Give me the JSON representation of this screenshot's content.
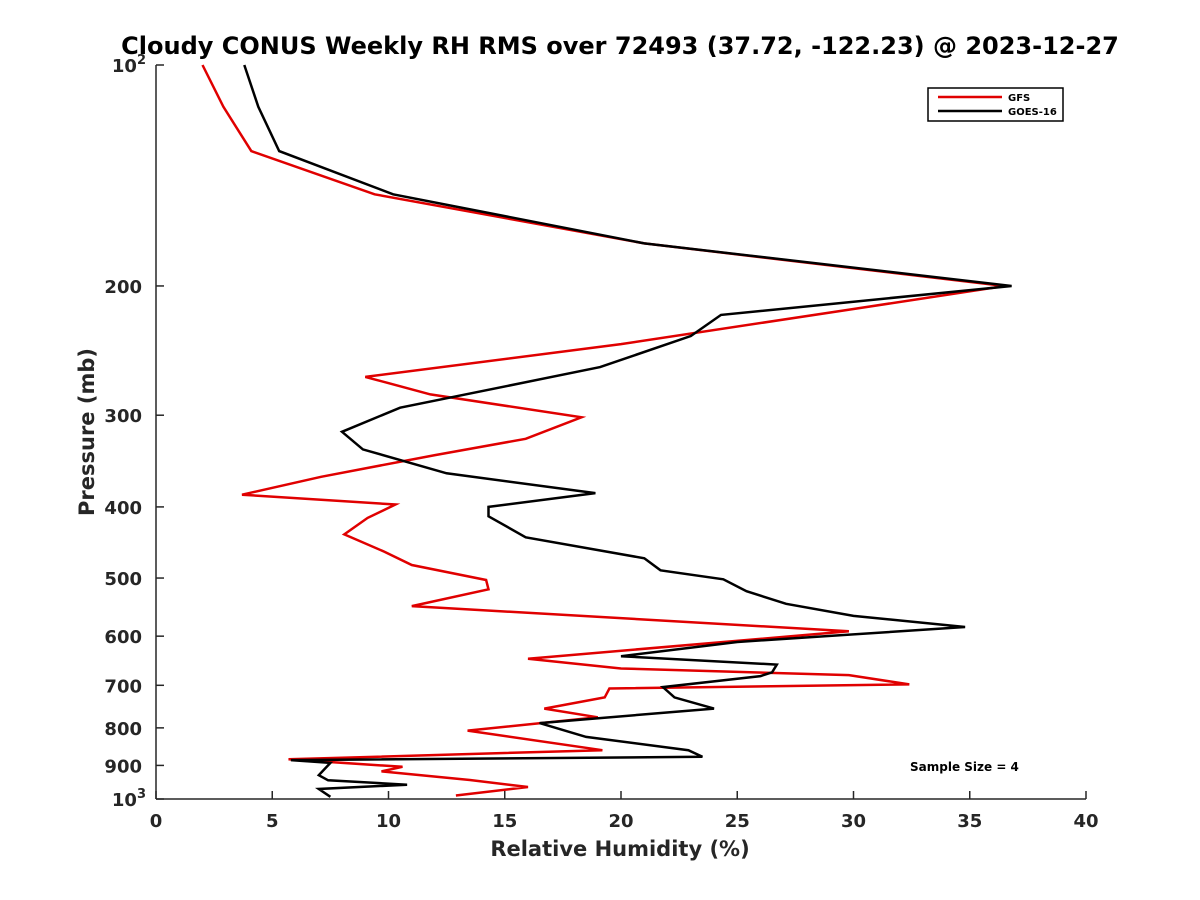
{
  "chart_data": {
    "type": "line",
    "title": "Cloudy CONUS Weekly RH RMS over 72493 (37.72, -122.23) @ 2023-12-27",
    "xlabel": "Relative Humidity (%)",
    "ylabel": "Pressure (mb)",
    "xlim": [
      0,
      40
    ],
    "ylim": [
      100,
      1000
    ],
    "y_scale": "log",
    "y_reversed": true,
    "x_ticks": [
      "0",
      "5",
      "10",
      "15",
      "20",
      "25",
      "30",
      "35",
      "40"
    ],
    "y_ticks": [
      {
        "value": 100,
        "base": "10",
        "exp": "2"
      },
      {
        "value": 200,
        "label": "200"
      },
      {
        "value": 300,
        "label": "300"
      },
      {
        "value": 400,
        "label": "400"
      },
      {
        "value": 500,
        "label": "500"
      },
      {
        "value": 600,
        "label": "600"
      },
      {
        "value": 700,
        "label": "700"
      },
      {
        "value": 800,
        "label": "800"
      },
      {
        "value": 900,
        "label": "900"
      },
      {
        "value": 1000,
        "base": "10",
        "exp": "3"
      }
    ],
    "grid": false,
    "legend_position": "top-right",
    "annotation": "Sample Size = 4",
    "series": [
      {
        "name": "GFS",
        "color": "#e00000",
        "points": [
          [
            2.0,
            100
          ],
          [
            2.9,
            114
          ],
          [
            4.1,
            131
          ],
          [
            9.4,
            150
          ],
          [
            21.0,
            175
          ],
          [
            36.5,
            200
          ],
          [
            30.0,
            215
          ],
          [
            20.0,
            240
          ],
          [
            9.0,
            266
          ],
          [
            11.8,
            281
          ],
          [
            18.3,
            302
          ],
          [
            15.9,
            323
          ],
          [
            12.0,
            340
          ],
          [
            7.1,
            364
          ],
          [
            3.7,
            385
          ],
          [
            10.3,
            397
          ],
          [
            9.1,
            414
          ],
          [
            8.1,
            436
          ],
          [
            9.8,
            460
          ],
          [
            11.0,
            480
          ],
          [
            14.2,
            503
          ],
          [
            14.3,
            518
          ],
          [
            11.0,
            546
          ],
          [
            29.8,
            591
          ],
          [
            16.0,
            644
          ],
          [
            20.0,
            664
          ],
          [
            29.8,
            678
          ],
          [
            32.4,
            698
          ],
          [
            19.5,
            707
          ],
          [
            19.3,
            727
          ],
          [
            16.7,
            753
          ],
          [
            19.0,
            774
          ],
          [
            13.4,
            807
          ],
          [
            19.2,
            858
          ],
          [
            5.7,
            883
          ],
          [
            10.6,
            904
          ],
          [
            9.7,
            917
          ],
          [
            13.5,
            942
          ],
          [
            16.0,
            963
          ],
          [
            12.9,
            989
          ]
        ]
      },
      {
        "name": "GOES-16",
        "color": "#000000",
        "points": [
          [
            3.8,
            100
          ],
          [
            4.4,
            114
          ],
          [
            5.3,
            131
          ],
          [
            10.2,
            150
          ],
          [
            21.0,
            175
          ],
          [
            36.8,
            200
          ],
          [
            24.3,
            219
          ],
          [
            23.0,
            234
          ],
          [
            19.1,
            258
          ],
          [
            10.5,
            293
          ],
          [
            8.0,
            316
          ],
          [
            8.9,
            334
          ],
          [
            12.5,
            360
          ],
          [
            18.9,
            383
          ],
          [
            14.3,
            400
          ],
          [
            14.3,
            412
          ],
          [
            15.9,
            440
          ],
          [
            21.0,
            470
          ],
          [
            21.7,
            488
          ],
          [
            24.4,
            502
          ],
          [
            25.4,
            521
          ],
          [
            27.1,
            542
          ],
          [
            30.0,
            563
          ],
          [
            34.8,
            583
          ],
          [
            25.0,
            611
          ],
          [
            20.0,
            639
          ],
          [
            26.7,
            656
          ],
          [
            26.5,
            672
          ],
          [
            26.0,
            680
          ],
          [
            21.8,
            704
          ],
          [
            22.3,
            727
          ],
          [
            24.0,
            753
          ],
          [
            16.5,
            788
          ],
          [
            18.5,
            823
          ],
          [
            22.9,
            858
          ],
          [
            23.5,
            876
          ],
          [
            5.8,
            885
          ],
          [
            7.5,
            893
          ],
          [
            7.0,
            928
          ],
          [
            7.4,
            943
          ],
          [
            10.8,
            956
          ],
          [
            7.0,
            969
          ],
          [
            7.5,
            993
          ]
        ]
      }
    ]
  }
}
